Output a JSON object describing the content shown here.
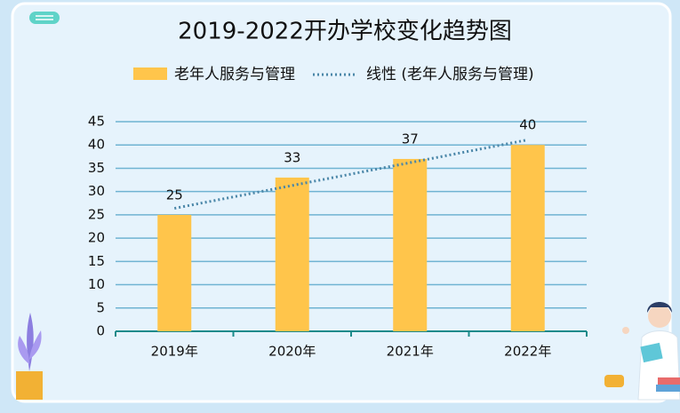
{
  "chart_data": {
    "type": "bar",
    "title": "2019-2022开办学校变化趋势图",
    "categories": [
      "2019年",
      "2020年",
      "2021年",
      "2022年"
    ],
    "series": [
      {
        "name": "老年人服务与管理",
        "color": "#ffc54b",
        "values": [
          25,
          33,
          37,
          40
        ]
      }
    ],
    "trendline": {
      "name": "线性 (老年人服务与管理)",
      "color": "#4a86a8"
    },
    "ylim": [
      0,
      45
    ],
    "yticks": [
      0,
      5,
      10,
      15,
      20,
      25,
      30,
      35,
      40,
      45
    ],
    "grid": true
  }
}
